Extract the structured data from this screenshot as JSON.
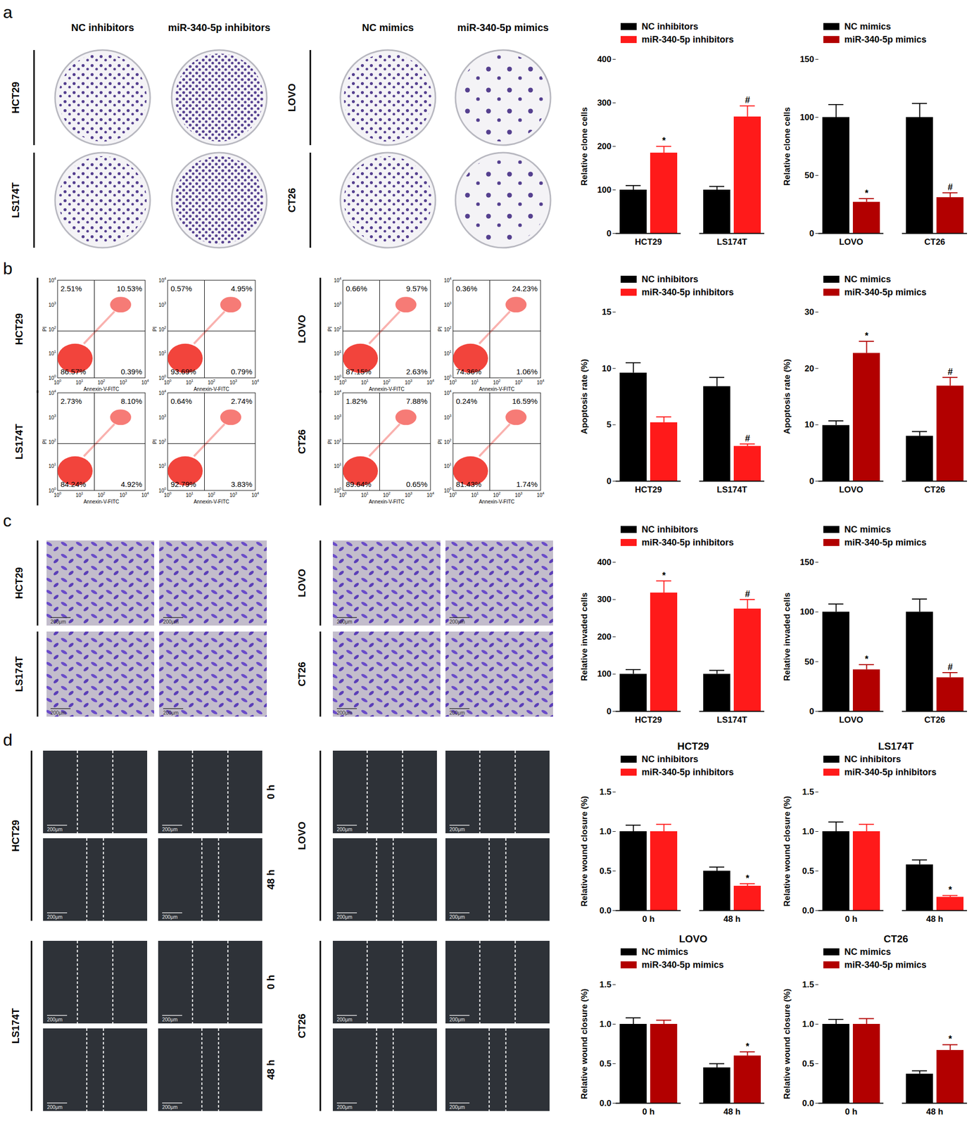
{
  "chart_data": [
    {
      "type": "bar",
      "y_label": "Relative clone cells",
      "categories": [
        "HCT29",
        "LS174T"
      ],
      "series": [
        {
          "name": "NC inhibitors",
          "color": "#000000",
          "values": [
            100,
            100
          ],
          "errors": [
            10,
            8
          ]
        },
        {
          "name": "miR-340-5p inhibitors",
          "color": "#ff1a1a",
          "values": [
            185,
            268
          ],
          "errors": [
            15,
            25
          ],
          "labels": [
            "*",
            "#"
          ]
        }
      ],
      "ylim": [
        0,
        400
      ],
      "yticks": [
        0,
        100,
        200,
        300,
        400
      ]
    },
    {
      "type": "bar",
      "y_label": "Relative clone cells",
      "categories": [
        "LOVO",
        "CT26"
      ],
      "series": [
        {
          "name": "NC mimics",
          "color": "#000000",
          "values": [
            100,
            100
          ],
          "errors": [
            11,
            12
          ]
        },
        {
          "name": "miR-340-5p mimics",
          "color": "#b20000",
          "values": [
            27,
            31
          ],
          "errors": [
            3,
            4
          ],
          "labels": [
            "*",
            "#"
          ]
        }
      ],
      "ylim": [
        0,
        150
      ],
      "yticks": [
        0,
        50,
        100,
        150
      ]
    },
    {
      "type": "bar",
      "y_label": "Apoptosis rate (%)",
      "categories": [
        "HCT29",
        "LS174T"
      ],
      "series": [
        {
          "name": "NC inhibitors",
          "color": "#000000",
          "values": [
            9.6,
            8.4
          ],
          "errors": [
            0.9,
            0.8
          ]
        },
        {
          "name": "miR-340-5p inhibitors",
          "color": "#ff1a1a",
          "values": [
            5.2,
            3.1
          ],
          "errors": [
            0.5,
            0.2
          ],
          "labels": [
            null,
            "#"
          ]
        }
      ],
      "ylim": [
        0,
        15
      ],
      "yticks": [
        0,
        5,
        10,
        15
      ]
    },
    {
      "type": "bar",
      "y_label": "Apoptosis rate (%)",
      "categories": [
        "LOVO",
        "CT26"
      ],
      "series": [
        {
          "name": "NC mimics",
          "color": "#000000",
          "values": [
            9.9,
            8.0
          ],
          "errors": [
            0.8,
            0.8
          ]
        },
        {
          "name": "miR-340-5p mimics",
          "color": "#b20000",
          "values": [
            22.7,
            16.9
          ],
          "errors": [
            2.1,
            1.5
          ],
          "labels": [
            "*",
            "#"
          ]
        }
      ],
      "ylim": [
        0,
        30
      ],
      "yticks": [
        0,
        10,
        20,
        30
      ]
    },
    {
      "type": "bar",
      "y_label": "Relative invaded cells",
      "categories": [
        "HCT29",
        "LS174T"
      ],
      "series": [
        {
          "name": "NC inhibitors",
          "color": "#000000",
          "values": [
            100,
            100
          ],
          "errors": [
            12,
            10
          ]
        },
        {
          "name": "miR-340-5p inhibitors",
          "color": "#ff1a1a",
          "values": [
            318,
            275
          ],
          "errors": [
            32,
            25
          ],
          "labels": [
            "*",
            "#"
          ]
        }
      ],
      "ylim": [
        0,
        400
      ],
      "yticks": [
        0,
        100,
        200,
        300,
        400
      ]
    },
    {
      "type": "bar",
      "y_label": "Relative invaded cells",
      "categories": [
        "LOVO",
        "CT26"
      ],
      "series": [
        {
          "name": "NC mimics",
          "color": "#000000",
          "values": [
            100,
            100
          ],
          "errors": [
            8,
            13
          ]
        },
        {
          "name": "miR-340-5p mimics",
          "color": "#b20000",
          "values": [
            42,
            34
          ],
          "errors": [
            5,
            5
          ],
          "labels": [
            "*",
            "#"
          ]
        }
      ],
      "ylim": [
        0,
        150
      ],
      "yticks": [
        0,
        50,
        100,
        150
      ]
    },
    {
      "type": "bar",
      "title": "HCT29",
      "y_label": "Relative wound closure (%)",
      "categories": [
        "0 h",
        "48 h"
      ],
      "series": [
        {
          "name": "NC inhibitors",
          "color": "#000000",
          "values": [
            1.0,
            0.5
          ],
          "errors": [
            0.08,
            0.05
          ]
        },
        {
          "name": "miR-340-5p inhibitors",
          "color": "#ff1a1a",
          "values": [
            1.0,
            0.31
          ],
          "errors": [
            0.09,
            0.03
          ],
          "labels": [
            null,
            "*"
          ]
        }
      ],
      "ylim": [
        0,
        1.5
      ],
      "yticks": [
        {
          "value": 0,
          "label": "0.0"
        },
        0.5,
        {
          "value": 1,
          "label": "1.0"
        },
        1.5
      ]
    },
    {
      "type": "bar",
      "title": "LS174T",
      "y_label": "Relative wound closure (%)",
      "categories": [
        "0 h",
        "48 h"
      ],
      "series": [
        {
          "name": "NC inhibitors",
          "color": "#000000",
          "values": [
            1.0,
            0.58
          ],
          "errors": [
            0.12,
            0.06
          ]
        },
        {
          "name": "miR-340-5p inhibitors",
          "color": "#ff1a1a",
          "values": [
            1.0,
            0.17
          ],
          "errors": [
            0.09,
            0.02
          ],
          "labels": [
            null,
            "*"
          ]
        }
      ],
      "ylim": [
        0,
        1.5
      ],
      "yticks": [
        {
          "value": 0,
          "label": "0.0"
        },
        0.5,
        {
          "value": 1,
          "label": "1.0"
        },
        1.5
      ]
    },
    {
      "type": "bar",
      "title": "LOVO",
      "y_label": "Relative wound closure (%)",
      "categories": [
        "0 h",
        "48 h"
      ],
      "series": [
        {
          "name": "NC mimics",
          "color": "#000000",
          "values": [
            1.0,
            0.45
          ],
          "errors": [
            0.08,
            0.05
          ]
        },
        {
          "name": "miR-340-5p mimics",
          "color": "#b20000",
          "values": [
            1.0,
            0.6
          ],
          "errors": [
            0.05,
            0.05
          ],
          "labels": [
            null,
            "*"
          ]
        }
      ],
      "ylim": [
        0,
        1.5
      ],
      "yticks": [
        {
          "value": 0,
          "label": "0.0"
        },
        0.5,
        {
          "value": 1,
          "label": "1.0"
        },
        1.5
      ]
    },
    {
      "type": "bar",
      "title": "CT26",
      "y_label": "Relative wound closure (%)",
      "categories": [
        "0 h",
        "48 h"
      ],
      "series": [
        {
          "name": "NC mimics",
          "color": "#000000",
          "values": [
            1.0,
            0.37
          ],
          "errors": [
            0.06,
            0.04
          ]
        },
        {
          "name": "miR-340-5p mimics",
          "color": "#b20000",
          "values": [
            1.0,
            0.67
          ],
          "errors": [
            0.07,
            0.07
          ],
          "labels": [
            null,
            "*"
          ]
        }
      ],
      "ylim": [
        0,
        1.5
      ],
      "yticks": [
        {
          "value": 0,
          "label": "0.0"
        },
        0.5,
        {
          "value": 1,
          "label": "1.0"
        },
        1.5
      ]
    }
  ],
  "figure": {
    "a": {
      "letter": "a",
      "groups": [
        {
          "columns": [
            "NC inhibitors",
            "miR-340-5p inhibitors"
          ],
          "rows": [
            "HCT29",
            "LS174T"
          ]
        },
        {
          "columns": [
            "NC mimics",
            "miR-340-5p mimics"
          ],
          "rows": [
            "LOVO",
            "CT26"
          ]
        }
      ]
    },
    "b": {
      "letter": "b",
      "x_label": "Annexin-V-FITC",
      "y_label": "PI",
      "tick_base": "10",
      "tick_exponents": [
        0,
        1,
        2,
        3,
        4
      ],
      "groups": [
        {
          "rows": [
            "HCT29",
            "LS174T"
          ],
          "quadrants": [
            [
              [
                "2.51%",
                "10.53%",
                "86.57%",
                "0.39%"
              ],
              [
                "0.57%",
                "4.95%",
                "93.69%",
                "0.79%"
              ]
            ],
            [
              [
                "2.73%",
                "8.10%",
                "84.24%",
                "4.92%"
              ],
              [
                "0.64%",
                "2.74%",
                "92.79%",
                "3.83%"
              ]
            ]
          ]
        },
        {
          "rows": [
            "LOVO",
            "CT26"
          ],
          "quadrants": [
            [
              [
                "0.66%",
                "9.57%",
                "87.15%",
                "2.63%"
              ],
              [
                "0.36%",
                "24.23%",
                "74.36%",
                "1.06%"
              ]
            ],
            [
              [
                "1.82%",
                "7.88%",
                "89.64%",
                "0.65%"
              ],
              [
                "0.24%",
                "16.59%",
                "81.43%",
                "1.74%"
              ]
            ]
          ]
        }
      ]
    },
    "c": {
      "letter": "c",
      "scale_bar": "200μm",
      "groups": [
        {
          "rows": [
            "HCT29",
            "LS174T"
          ]
        },
        {
          "rows": [
            "LOVO",
            "CT26"
          ]
        }
      ]
    },
    "d": {
      "letter": "d",
      "scale_bar": "200μm",
      "times": [
        "0 h",
        "48 h"
      ],
      "groups": [
        {
          "rows": [
            "HCT29",
            "LS174T"
          ]
        },
        {
          "rows": [
            "LOVO",
            "CT26"
          ]
        }
      ]
    }
  }
}
